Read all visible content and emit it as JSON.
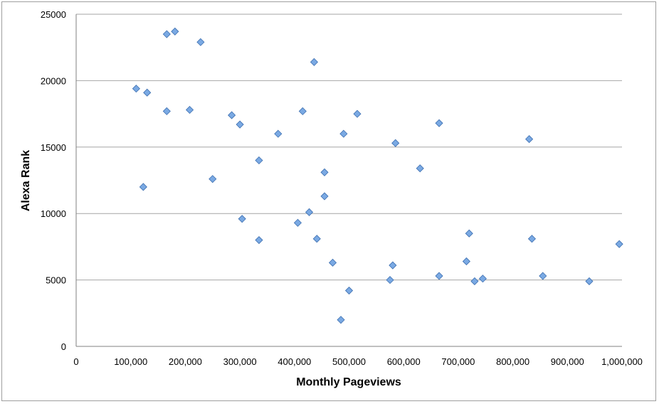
{
  "chart_data": {
    "type": "scatter",
    "title": "",
    "xlabel": "Monthly Pageviews",
    "ylabel": "Alexa Rank",
    "xlim": [
      0,
      1000000
    ],
    "ylim": [
      0,
      25000
    ],
    "grid": true,
    "x_ticks": [
      0,
      100000,
      200000,
      300000,
      400000,
      500000,
      600000,
      700000,
      800000,
      900000,
      1000000
    ],
    "x_tick_labels": [
      "0",
      "100,000",
      "200,000",
      "300,000",
      "400,000",
      "500,000",
      "600,000",
      "700,000",
      "800,000",
      "900,000",
      "1,000,000"
    ],
    "y_ticks": [
      0,
      5000,
      10000,
      15000,
      20000,
      25000
    ],
    "y_tick_labels": [
      "0",
      "5000",
      "10000",
      "15000",
      "20000",
      "25000"
    ],
    "marker_color": "#7aa9e3",
    "marker_shape": "diamond",
    "points": [
      [
        110000,
        19400
      ],
      [
        123000,
        12000
      ],
      [
        130000,
        19100
      ],
      [
        166000,
        23500
      ],
      [
        166000,
        17700
      ],
      [
        181000,
        23700
      ],
      [
        208000,
        17800
      ],
      [
        228000,
        22900
      ],
      [
        250000,
        12600
      ],
      [
        285000,
        17400
      ],
      [
        300000,
        16700
      ],
      [
        304000,
        9600
      ],
      [
        335000,
        14000
      ],
      [
        335000,
        8000
      ],
      [
        370000,
        16000
      ],
      [
        406000,
        9300
      ],
      [
        415000,
        17700
      ],
      [
        427000,
        10100
      ],
      [
        436000,
        21400
      ],
      [
        441000,
        8100
      ],
      [
        455000,
        13100
      ],
      [
        455000,
        11300
      ],
      [
        470000,
        6300
      ],
      [
        485000,
        2000
      ],
      [
        490000,
        16000
      ],
      [
        500000,
        4200
      ],
      [
        515000,
        17500
      ],
      [
        575000,
        5000
      ],
      [
        580000,
        6100
      ],
      [
        585000,
        15300
      ],
      [
        630000,
        13400
      ],
      [
        665000,
        16800
      ],
      [
        665000,
        5300
      ],
      [
        715000,
        6400
      ],
      [
        720000,
        8500
      ],
      [
        730000,
        4900
      ],
      [
        745000,
        5100
      ],
      [
        830000,
        15600
      ],
      [
        835000,
        8100
      ],
      [
        855000,
        5300
      ],
      [
        940000,
        4900
      ],
      [
        995000,
        7700
      ]
    ]
  }
}
